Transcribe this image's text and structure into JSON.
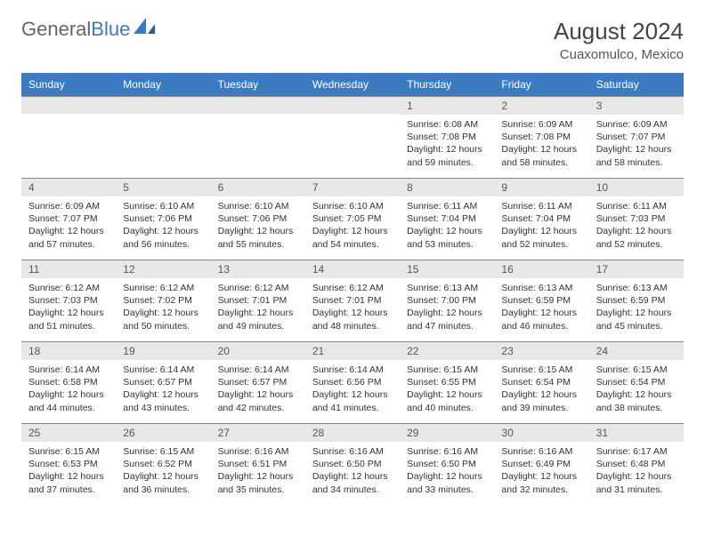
{
  "brand": {
    "part1": "General",
    "part2": "Blue"
  },
  "title": "August 2024",
  "location": "Cuaxomulco, Mexico",
  "colors": {
    "header_bg": "#3b7bbf",
    "header_text": "#ffffff",
    "daynum_bg": "#e8e8e8",
    "border": "#888888",
    "page_bg": "#ffffff",
    "text": "#333333",
    "logo_gray": "#666666",
    "logo_blue": "#3b7bbf"
  },
  "day_headers": [
    "Sunday",
    "Monday",
    "Tuesday",
    "Wednesday",
    "Thursday",
    "Friday",
    "Saturday"
  ],
  "weeks": [
    [
      {
        "n": "",
        "lines": []
      },
      {
        "n": "",
        "lines": []
      },
      {
        "n": "",
        "lines": []
      },
      {
        "n": "",
        "lines": []
      },
      {
        "n": "1",
        "lines": [
          "Sunrise: 6:08 AM",
          "Sunset: 7:08 PM",
          "Daylight: 12 hours",
          "and 59 minutes."
        ]
      },
      {
        "n": "2",
        "lines": [
          "Sunrise: 6:09 AM",
          "Sunset: 7:08 PM",
          "Daylight: 12 hours",
          "and 58 minutes."
        ]
      },
      {
        "n": "3",
        "lines": [
          "Sunrise: 6:09 AM",
          "Sunset: 7:07 PM",
          "Daylight: 12 hours",
          "and 58 minutes."
        ]
      }
    ],
    [
      {
        "n": "4",
        "lines": [
          "Sunrise: 6:09 AM",
          "Sunset: 7:07 PM",
          "Daylight: 12 hours",
          "and 57 minutes."
        ]
      },
      {
        "n": "5",
        "lines": [
          "Sunrise: 6:10 AM",
          "Sunset: 7:06 PM",
          "Daylight: 12 hours",
          "and 56 minutes."
        ]
      },
      {
        "n": "6",
        "lines": [
          "Sunrise: 6:10 AM",
          "Sunset: 7:06 PM",
          "Daylight: 12 hours",
          "and 55 minutes."
        ]
      },
      {
        "n": "7",
        "lines": [
          "Sunrise: 6:10 AM",
          "Sunset: 7:05 PM",
          "Daylight: 12 hours",
          "and 54 minutes."
        ]
      },
      {
        "n": "8",
        "lines": [
          "Sunrise: 6:11 AM",
          "Sunset: 7:04 PM",
          "Daylight: 12 hours",
          "and 53 minutes."
        ]
      },
      {
        "n": "9",
        "lines": [
          "Sunrise: 6:11 AM",
          "Sunset: 7:04 PM",
          "Daylight: 12 hours",
          "and 52 minutes."
        ]
      },
      {
        "n": "10",
        "lines": [
          "Sunrise: 6:11 AM",
          "Sunset: 7:03 PM",
          "Daylight: 12 hours",
          "and 52 minutes."
        ]
      }
    ],
    [
      {
        "n": "11",
        "lines": [
          "Sunrise: 6:12 AM",
          "Sunset: 7:03 PM",
          "Daylight: 12 hours",
          "and 51 minutes."
        ]
      },
      {
        "n": "12",
        "lines": [
          "Sunrise: 6:12 AM",
          "Sunset: 7:02 PM",
          "Daylight: 12 hours",
          "and 50 minutes."
        ]
      },
      {
        "n": "13",
        "lines": [
          "Sunrise: 6:12 AM",
          "Sunset: 7:01 PM",
          "Daylight: 12 hours",
          "and 49 minutes."
        ]
      },
      {
        "n": "14",
        "lines": [
          "Sunrise: 6:12 AM",
          "Sunset: 7:01 PM",
          "Daylight: 12 hours",
          "and 48 minutes."
        ]
      },
      {
        "n": "15",
        "lines": [
          "Sunrise: 6:13 AM",
          "Sunset: 7:00 PM",
          "Daylight: 12 hours",
          "and 47 minutes."
        ]
      },
      {
        "n": "16",
        "lines": [
          "Sunrise: 6:13 AM",
          "Sunset: 6:59 PM",
          "Daylight: 12 hours",
          "and 46 minutes."
        ]
      },
      {
        "n": "17",
        "lines": [
          "Sunrise: 6:13 AM",
          "Sunset: 6:59 PM",
          "Daylight: 12 hours",
          "and 45 minutes."
        ]
      }
    ],
    [
      {
        "n": "18",
        "lines": [
          "Sunrise: 6:14 AM",
          "Sunset: 6:58 PM",
          "Daylight: 12 hours",
          "and 44 minutes."
        ]
      },
      {
        "n": "19",
        "lines": [
          "Sunrise: 6:14 AM",
          "Sunset: 6:57 PM",
          "Daylight: 12 hours",
          "and 43 minutes."
        ]
      },
      {
        "n": "20",
        "lines": [
          "Sunrise: 6:14 AM",
          "Sunset: 6:57 PM",
          "Daylight: 12 hours",
          "and 42 minutes."
        ]
      },
      {
        "n": "21",
        "lines": [
          "Sunrise: 6:14 AM",
          "Sunset: 6:56 PM",
          "Daylight: 12 hours",
          "and 41 minutes."
        ]
      },
      {
        "n": "22",
        "lines": [
          "Sunrise: 6:15 AM",
          "Sunset: 6:55 PM",
          "Daylight: 12 hours",
          "and 40 minutes."
        ]
      },
      {
        "n": "23",
        "lines": [
          "Sunrise: 6:15 AM",
          "Sunset: 6:54 PM",
          "Daylight: 12 hours",
          "and 39 minutes."
        ]
      },
      {
        "n": "24",
        "lines": [
          "Sunrise: 6:15 AM",
          "Sunset: 6:54 PM",
          "Daylight: 12 hours",
          "and 38 minutes."
        ]
      }
    ],
    [
      {
        "n": "25",
        "lines": [
          "Sunrise: 6:15 AM",
          "Sunset: 6:53 PM",
          "Daylight: 12 hours",
          "and 37 minutes."
        ]
      },
      {
        "n": "26",
        "lines": [
          "Sunrise: 6:15 AM",
          "Sunset: 6:52 PM",
          "Daylight: 12 hours",
          "and 36 minutes."
        ]
      },
      {
        "n": "27",
        "lines": [
          "Sunrise: 6:16 AM",
          "Sunset: 6:51 PM",
          "Daylight: 12 hours",
          "and 35 minutes."
        ]
      },
      {
        "n": "28",
        "lines": [
          "Sunrise: 6:16 AM",
          "Sunset: 6:50 PM",
          "Daylight: 12 hours",
          "and 34 minutes."
        ]
      },
      {
        "n": "29",
        "lines": [
          "Sunrise: 6:16 AM",
          "Sunset: 6:50 PM",
          "Daylight: 12 hours",
          "and 33 minutes."
        ]
      },
      {
        "n": "30",
        "lines": [
          "Sunrise: 6:16 AM",
          "Sunset: 6:49 PM",
          "Daylight: 12 hours",
          "and 32 minutes."
        ]
      },
      {
        "n": "31",
        "lines": [
          "Sunrise: 6:17 AM",
          "Sunset: 6:48 PM",
          "Daylight: 12 hours",
          "and 31 minutes."
        ]
      }
    ]
  ]
}
